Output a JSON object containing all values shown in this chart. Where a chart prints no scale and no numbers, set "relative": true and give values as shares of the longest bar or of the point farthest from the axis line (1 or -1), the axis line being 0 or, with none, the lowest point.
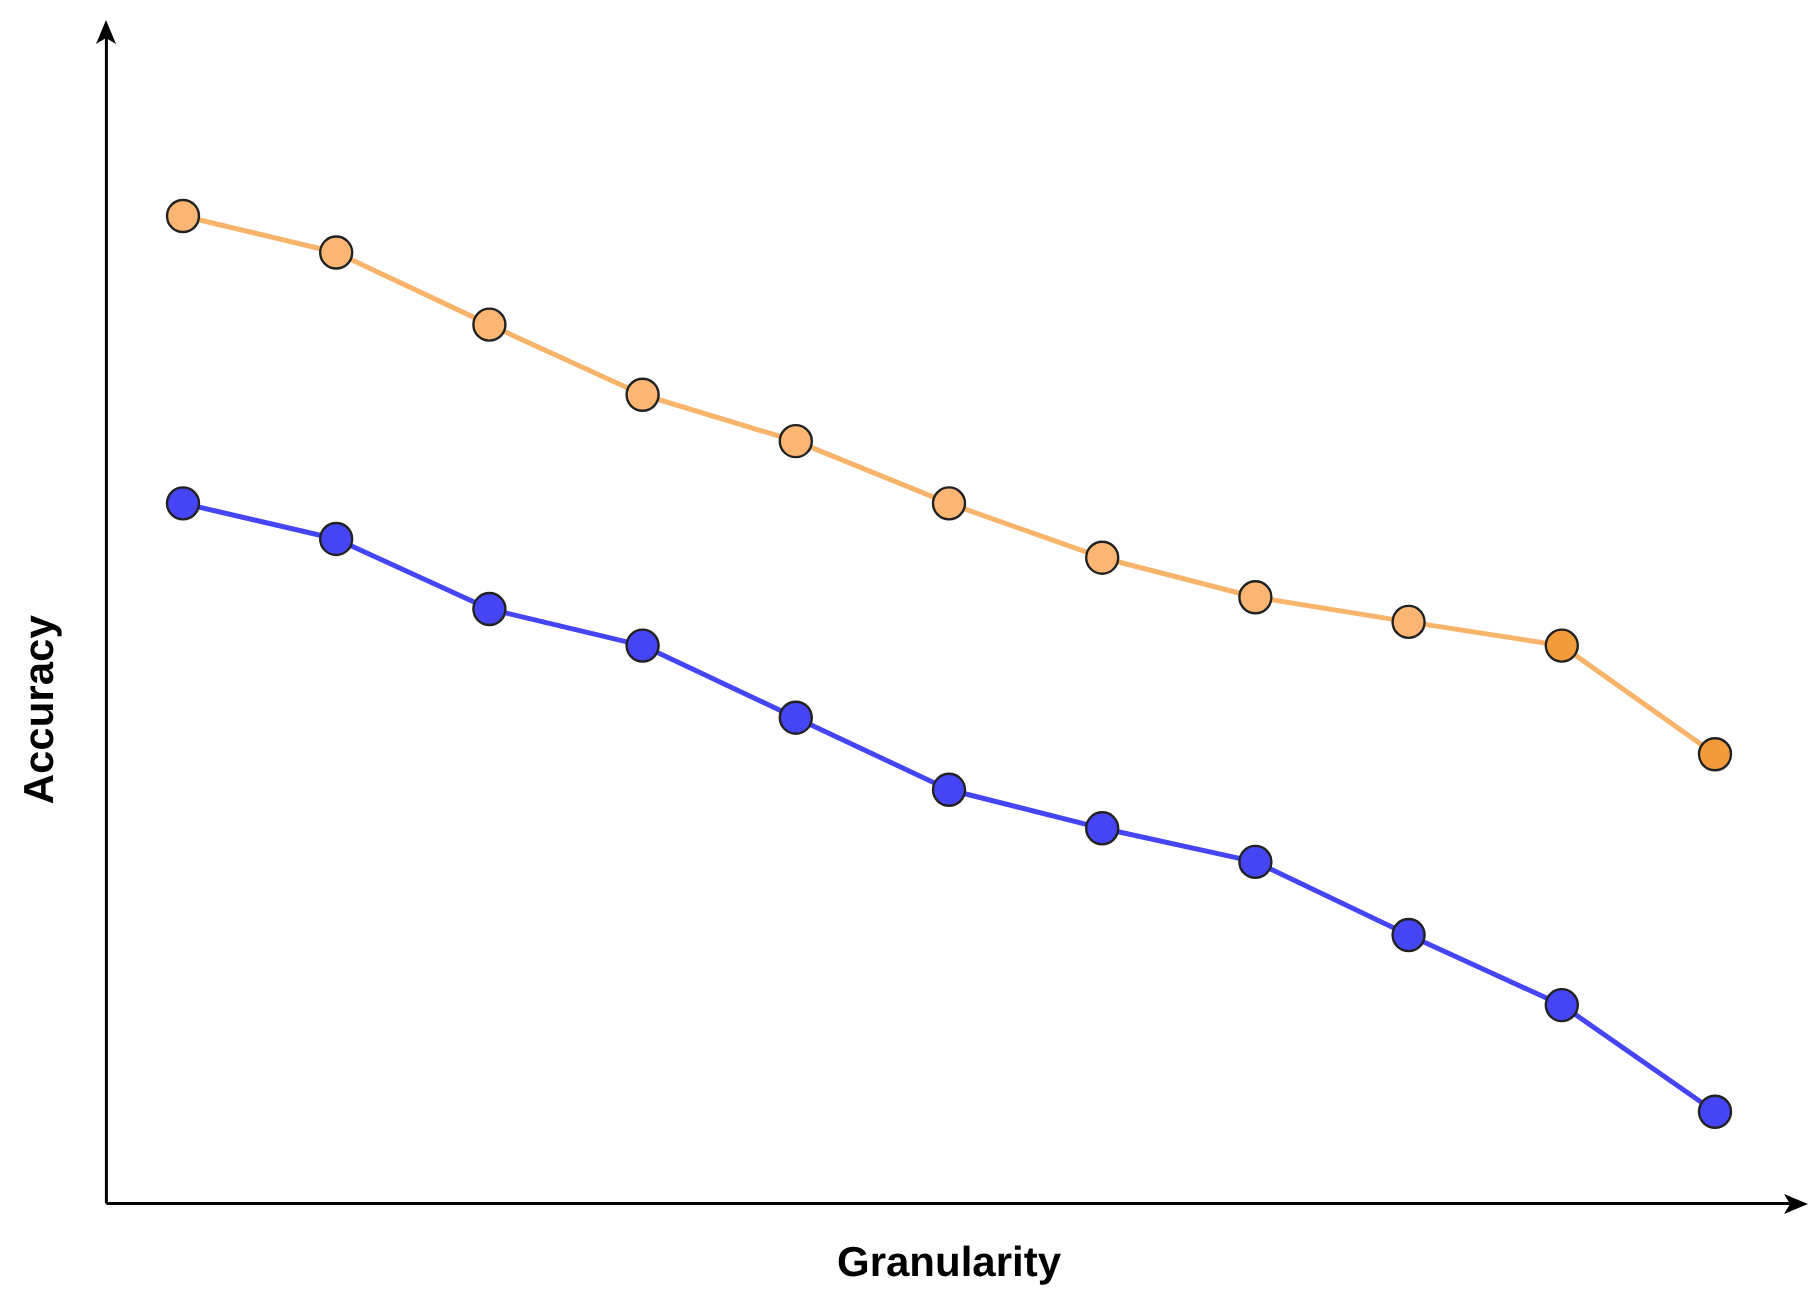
{
  "chart_data": {
    "type": "line",
    "xlabel": "Granularity",
    "ylabel": "Accuracy",
    "relative": true,
    "grid": false,
    "legend": false,
    "marker": "circle",
    "line_style": "solid",
    "categories": [
      null,
      null,
      null,
      null,
      null,
      null,
      null,
      null,
      null,
      null,
      null
    ],
    "series": [
      {
        "color": "#f9b46b",
        "colors": [
          "#fbb673",
          "#fbb673",
          "#fbb673",
          "#fbb673",
          "#fbb673",
          "#fbb673",
          "#fbb673",
          "#fbb673",
          "#fbb673",
          "#f19b3b",
          "#f19b3b"
        ],
        "values": [
          1,
          0.963,
          0.89,
          0.819,
          0.772,
          0.709,
          0.654,
          0.614,
          0.589,
          0.565,
          0.455
        ]
      },
      {
        "color": "#4545f5",
        "values": [
          0.709,
          0.673,
          0.602,
          0.565,
          0.492,
          0.419,
          0.38,
          0.346,
          0.272,
          0.201,
          0.093
        ]
      }
    ]
  }
}
